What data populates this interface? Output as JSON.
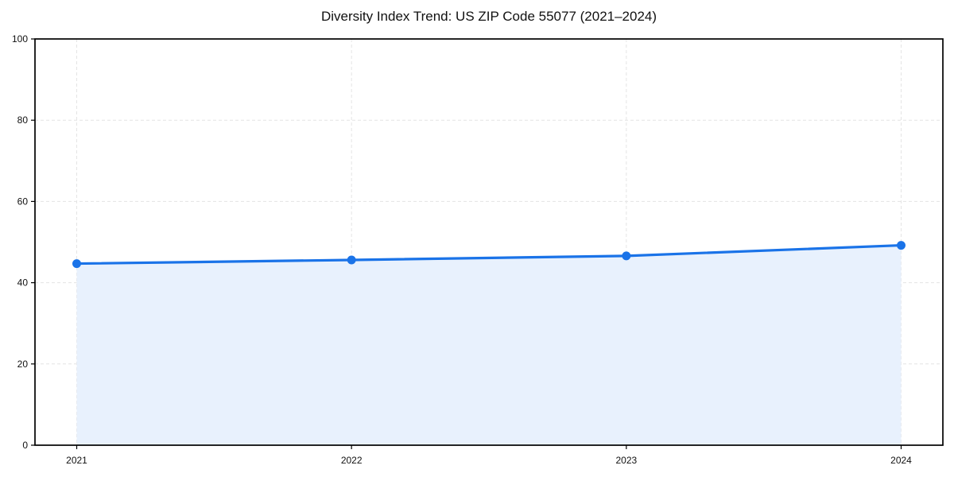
{
  "chart_data": {
    "type": "area",
    "title": "Diversity Index Trend: US ZIP Code 55077 (2021–2024)",
    "xlabel": "",
    "ylabel": "",
    "categories": [
      "2021",
      "2022",
      "2023",
      "2024"
    ],
    "series": [
      {
        "name": "Diversity Index",
        "values": [
          44.7,
          45.6,
          46.6,
          49.2
        ]
      }
    ],
    "ylim": [
      0,
      100
    ],
    "yticks": [
      0,
      20,
      40,
      60,
      80,
      100
    ],
    "grid": true,
    "grid_style": "dashed",
    "legend_position": "none",
    "frame": "full-box",
    "colors": {
      "line": "#1a73e8",
      "marker": "#1a73e8",
      "fill": "#e8f1fd",
      "grid": "#e4e4e4",
      "axis": "#000000",
      "text": "#111111",
      "background": "#ffffff"
    }
  }
}
